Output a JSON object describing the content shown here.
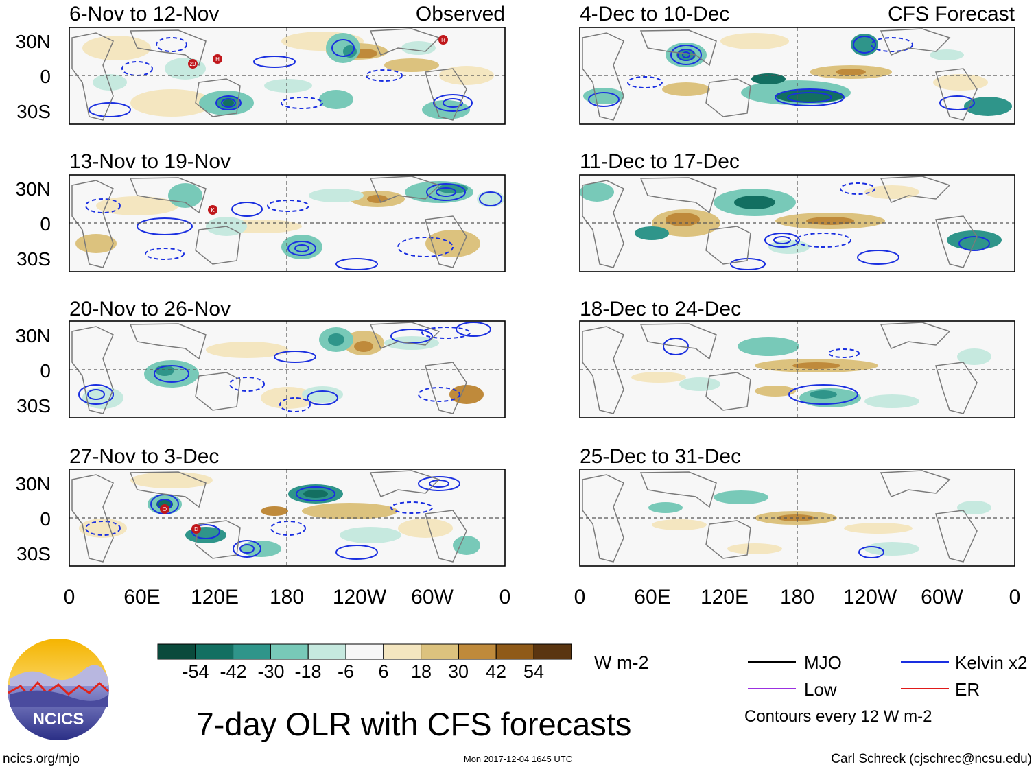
{
  "header": {
    "left_tag": "Observed",
    "right_tag": "CFS Forecast"
  },
  "panels": {
    "observed": [
      {
        "title": "6-Nov to 12-Nov",
        "storms": [
          "29",
          "H",
          "R"
        ]
      },
      {
        "title": "13-Nov to 19-Nov",
        "storms": [
          "K"
        ]
      },
      {
        "title": "20-Nov to 26-Nov",
        "storms": []
      },
      {
        "title": "27-Nov to 3-Dec",
        "storms": [
          "O",
          "D"
        ]
      }
    ],
    "forecast": [
      {
        "title": "4-Dec to 10-Dec"
      },
      {
        "title": "11-Dec to 17-Dec"
      },
      {
        "title": "18-Dec to 24-Dec"
      },
      {
        "title": "25-Dec to 31-Dec"
      }
    ]
  },
  "axes": {
    "lat_labels": [
      "30N",
      "0",
      "30S"
    ],
    "lon_labels": [
      "0",
      "60E",
      "120E",
      "180",
      "120W",
      "60W",
      "0"
    ]
  },
  "colorbar": {
    "tick_labels": [
      "-54",
      "-42",
      "-30",
      "-18",
      "-6",
      "6",
      "18",
      "30",
      "42",
      "54"
    ],
    "units": "W m-2",
    "colors": [
      "#0a4a3c",
      "#136f61",
      "#2f958a",
      "#78c9b8",
      "#c6e9df",
      "#f7f7f7",
      "#f4e6c0",
      "#dcc27e",
      "#bf8a3b",
      "#8f5a18",
      "#5a3510"
    ]
  },
  "legend": {
    "items": [
      {
        "label": "MJO",
        "color": "#000000"
      },
      {
        "label": "Kelvin x2",
        "color": "#1a2fe0"
      },
      {
        "label": "Low",
        "color": "#9b30e0"
      },
      {
        "label": "ER",
        "color": "#e01a1a"
      }
    ],
    "note": "Contours every 12 W m-2"
  },
  "title": "7-day OLR with CFS forecasts",
  "logo": {
    "text": "NCICS"
  },
  "footer": {
    "url": "ncics.org/mjo",
    "timestamp": "Mon 2017-12-04 1645 UTC",
    "credit": "Carl Schreck (cjschrec@ncsu.edu)"
  }
}
